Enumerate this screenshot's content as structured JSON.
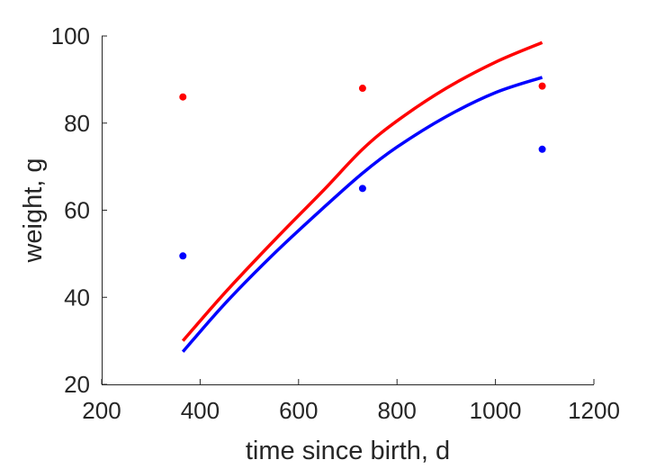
{
  "chart_data": {
    "type": "scatter",
    "title": "",
    "xlabel": "time since birth, d",
    "ylabel": "weight, g",
    "xlim": [
      200,
      1200
    ],
    "ylim": [
      20,
      100
    ],
    "xticks": [
      200,
      400,
      600,
      800,
      1000,
      1200
    ],
    "yticks": [
      20,
      40,
      60,
      80,
      100
    ],
    "grid": false,
    "legend": "none",
    "series": [
      {
        "color": "#ff0000",
        "points": [
          {
            "x": 365,
            "y": 86
          },
          {
            "x": 730,
            "y": 88
          },
          {
            "x": 1095,
            "y": 88.5
          }
        ],
        "curve": [
          {
            "x": 365,
            "y": 30
          },
          {
            "x": 450,
            "y": 41
          },
          {
            "x": 550,
            "y": 53
          },
          {
            "x": 650,
            "y": 64.5
          },
          {
            "x": 730,
            "y": 74
          },
          {
            "x": 800,
            "y": 80.5
          },
          {
            "x": 900,
            "y": 88
          },
          {
            "x": 1000,
            "y": 94
          },
          {
            "x": 1095,
            "y": 98.5
          }
        ]
      },
      {
        "color": "#0000ff",
        "points": [
          {
            "x": 365,
            "y": 49.5
          },
          {
            "x": 730,
            "y": 65
          },
          {
            "x": 1095,
            "y": 74
          }
        ],
        "curve": [
          {
            "x": 365,
            "y": 27.5
          },
          {
            "x": 450,
            "y": 38.5
          },
          {
            "x": 550,
            "y": 50
          },
          {
            "x": 650,
            "y": 60.5
          },
          {
            "x": 730,
            "y": 68.5
          },
          {
            "x": 800,
            "y": 74.5
          },
          {
            "x": 900,
            "y": 81.5
          },
          {
            "x": 1000,
            "y": 87
          },
          {
            "x": 1095,
            "y": 90.5
          }
        ]
      }
    ]
  }
}
